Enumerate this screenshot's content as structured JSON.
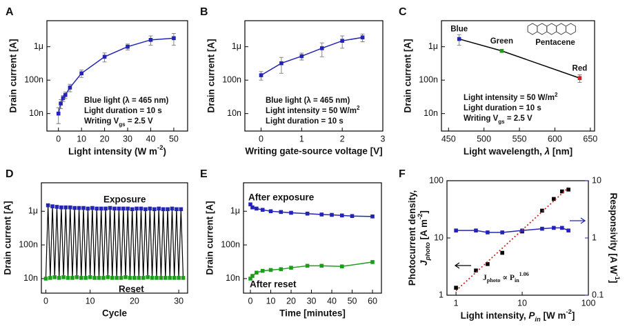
{
  "chart_data": [
    {
      "type": "line",
      "panel": "A",
      "xlabel": [
        {
          "text": "Light intensity (W m"
        },
        {
          "text": "-2",
          "sup": true
        },
        {
          "text": ")"
        }
      ],
      "ylabel": "Drain current [A]",
      "xlim": [
        -5,
        56
      ],
      "xticks": [
        0,
        10,
        20,
        30,
        40,
        50
      ],
      "ylim": [
        3e-09,
        6e-06
      ],
      "ylog": true,
      "yticks": [
        {
          "value": 1e-08,
          "label": "10n"
        },
        {
          "value": 1e-07,
          "label": "100n"
        },
        {
          "value": 1e-06,
          "label": "1μ"
        }
      ],
      "series": [
        {
          "color": "#2323b5",
          "x": [
            0,
            1,
            2,
            3,
            5,
            10,
            20,
            30,
            40,
            50
          ],
          "values": [
            1e-08,
            2e-08,
            2.9e-08,
            3.6e-08,
            6e-08,
            1.6e-07,
            5e-07,
            1e-06,
            1.6e-06,
            1.8e-06
          ],
          "errors": [
            5e-09,
            6e-09,
            6e-09,
            8e-09,
            1.5e-08,
            4e-08,
            1.5e-07,
            2e-07,
            5e-07,
            7e-07
          ]
        }
      ],
      "annotations": [
        "Blue light (λ = 465 nm)",
        "Light duration = 10 s",
        [
          {
            "text": "Writing V"
          },
          {
            "text": "gs",
            "sub": true
          },
          {
            "text": " = 2.5 V"
          }
        ]
      ]
    },
    {
      "type": "line",
      "panel": "B",
      "xlabel": "Writing gate-source voltage [V]",
      "ylabel": "Drain current [A]",
      "xlim": [
        -0.4,
        3
      ],
      "xticks": [
        0,
        1,
        2,
        3
      ],
      "ylim": [
        3e-09,
        6e-06
      ],
      "ylog": true,
      "yticks": [
        {
          "value": 1e-08,
          "label": "10n"
        },
        {
          "value": 1e-07,
          "label": "100n"
        },
        {
          "value": 1e-06,
          "label": "1μ"
        }
      ],
      "series": [
        {
          "color": "#2323b5",
          "x": [
            0,
            0.5,
            1,
            1.5,
            2,
            2.5
          ],
          "values": [
            1.4e-07,
            3.2e-07,
            5.2e-07,
            9e-07,
            1.5e-06,
            1.9e-06
          ],
          "errors": [
            4e-08,
            1.6e-07,
            1.2e-07,
            4e-07,
            6e-07,
            5e-07
          ]
        }
      ],
      "annotations": [
        "Blue light (λ = 465 nm)",
        [
          {
            "text": "Light intensity = 50 W/m"
          },
          {
            "text": "2",
            "sup": true
          }
        ],
        "Light duration = 10 s"
      ]
    },
    {
      "type": "line",
      "panel": "C",
      "xlabel": [
        {
          "text": "Light wavelength, "
        },
        {
          "text": "λ",
          "italic": true
        },
        {
          "text": " [nm]"
        }
      ],
      "ylabel": "Drain current [A]",
      "xlim": [
        440,
        656
      ],
      "xticks": [
        450,
        500,
        550,
        600,
        650
      ],
      "ylim": [
        3e-09,
        6e-06
      ],
      "ylog": true,
      "yticks": [
        {
          "value": 1e-08,
          "label": "10n"
        },
        {
          "value": 1e-07,
          "label": "100n"
        },
        {
          "value": 1e-06,
          "label": "1μ"
        }
      ],
      "line_color": "#000000",
      "series": [
        {
          "x": [
            465,
            525,
            635
          ],
          "values": [
            1.7e-06,
            7.5e-07,
            1.15e-07
          ],
          "errors": [
            6e-07,
            5e-08,
            3e-08
          ],
          "point_labels": [
            "Blue",
            "Green",
            "Red"
          ],
          "point_colors": [
            "#2323b5",
            "#1a9e1a",
            "#cc2222"
          ]
        }
      ],
      "molecule_label": "Pentacene",
      "annotations": [
        [
          {
            "text": "Light intensity = 50 W/m"
          },
          {
            "text": "2",
            "sup": true
          }
        ],
        "Light duration = 10 s",
        [
          {
            "text": "Writing V"
          },
          {
            "text": "gs",
            "sub": true
          },
          {
            "text": " = 2.5 V"
          }
        ]
      ]
    },
    {
      "type": "line",
      "panel": "D",
      "xlabel": "Cycle",
      "ylabel": "Drain current [A]",
      "xlim": [
        -1,
        32
      ],
      "xticks": [
        0,
        10,
        20,
        30
      ],
      "ylim": [
        3.7e-09,
        7e-06
      ],
      "ylog": true,
      "yticks": [
        {
          "value": 1e-08,
          "label": "10n"
        },
        {
          "value": 1e-07,
          "label": "100n"
        },
        {
          "value": 1e-06,
          "label": "1μ"
        }
      ],
      "zigzag": true,
      "trace_color": "#000000",
      "series": [
        {
          "name": "Exposure",
          "color": "#2323b5",
          "line": false,
          "x": [
            0.5,
            1.5,
            2.5,
            3.5,
            4.5,
            5.5,
            6.5,
            7.5,
            8.5,
            9.5,
            10.5,
            11.5,
            12.5,
            13.5,
            14.5,
            15.5,
            16.5,
            17.5,
            18.5,
            19.5,
            20.5,
            21.5,
            22.5,
            23.5,
            24.5,
            25.5,
            26.5,
            27.5,
            28.5,
            29.5,
            30.5
          ],
          "values": [
            1.5e-06,
            1.4e-06,
            1.35e-06,
            1.3e-06,
            1.3e-06,
            1.3e-06,
            1.25e-06,
            1.25e-06,
            1.25e-06,
            1.2e-06,
            1.25e-06,
            1.2e-06,
            1.2e-06,
            1.2e-06,
            1.25e-06,
            1.2e-06,
            1.2e-06,
            1.2e-06,
            1.2e-06,
            1.15e-06,
            1.2e-06,
            1.2e-06,
            1.15e-06,
            1.2e-06,
            1.15e-06,
            1.2e-06,
            1.15e-06,
            1.15e-06,
            1.2e-06,
            1.15e-06,
            1.15e-06
          ]
        },
        {
          "name": "Reset",
          "color": "#1a9e1a",
          "line": false,
          "x": [
            0,
            1,
            2,
            3,
            4,
            5,
            6,
            7,
            8,
            9,
            10,
            11,
            12,
            13,
            14,
            15,
            16,
            17,
            18,
            19,
            20,
            21,
            22,
            23,
            24,
            25,
            26,
            27,
            28,
            29,
            30,
            31
          ],
          "values": [
            1e-08,
            1.05e-08,
            1.1e-08,
            1.05e-08,
            1.1e-08,
            1.05e-08,
            1.05e-08,
            1.1e-08,
            1.05e-08,
            1.05e-08,
            1.1e-08,
            1.05e-08,
            1.05e-08,
            1.05e-08,
            1.1e-08,
            1.05e-08,
            1.05e-08,
            1.05e-08,
            1.1e-08,
            1.05e-08,
            1.05e-08,
            1.05e-08,
            1.05e-08,
            1.1e-08,
            1.05e-08,
            1.05e-08,
            1.05e-08,
            1.05e-08,
            1.05e-08,
            1.05e-08,
            1.05e-08,
            1.05e-08
          ]
        }
      ]
    },
    {
      "type": "line",
      "panel": "E",
      "xlabel": "Time [minutes]",
      "ylabel": "Drain current [A]",
      "xlim": [
        -3.4,
        64.4
      ],
      "xticks": [
        0,
        10,
        20,
        30,
        40,
        50,
        60
      ],
      "ylim": [
        3.7e-09,
        7e-06
      ],
      "ylog": true,
      "yticks": [
        {
          "value": 1e-08,
          "label": "10n"
        },
        {
          "value": 1e-07,
          "label": "100n"
        },
        {
          "value": 1e-06,
          "label": "1μ"
        }
      ],
      "series": [
        {
          "name": "After exposure",
          "color": "#2323b5",
          "x": [
            0,
            1,
            3,
            6,
            10,
            15,
            20,
            28,
            35,
            40,
            45,
            50,
            60
          ],
          "values": [
            1.6e-06,
            1.3e-06,
            1.2e-06,
            1.1e-06,
            1e-06,
            9.5e-07,
            9e-07,
            8.5e-07,
            8e-07,
            7.8e-07,
            7.5e-07,
            7.2e-07,
            7e-07
          ]
        },
        {
          "name": "After reset",
          "color": "#1a9e1a",
          "x": [
            0,
            1,
            3,
            6,
            10,
            15,
            20,
            28,
            35,
            45,
            60
          ],
          "values": [
            1e-08,
            1.2e-08,
            1.5e-08,
            1.7e-08,
            1.8e-08,
            1.9e-08,
            2.1e-08,
            2.4e-08,
            2.4e-08,
            2.3e-08,
            3.1e-08
          ]
        }
      ]
    },
    {
      "type": "line",
      "panel": "F",
      "xlabel": [
        {
          "text": "Light intensity, "
        },
        {
          "text": "P",
          "italic": true
        },
        {
          "text": "in",
          "sub": true,
          "italic": true
        },
        {
          "text": " [W m"
        },
        {
          "text": "-2",
          "sup": true
        },
        {
          "text": "]"
        }
      ],
      "ylabel": [
        [
          {
            "text": "Photocurrent density,"
          }
        ],
        [
          {
            "text": "J",
            "italic": true
          },
          {
            "text": "photo",
            "sub": true,
            "italic": true
          },
          {
            "text": " [A m"
          },
          {
            "text": "-2",
            "sup": true
          },
          {
            "text": "]"
          }
        ]
      ],
      "y2label": [
        {
          "text": "Responsivity [A W"
        },
        {
          "text": "-1",
          "sup": true
        },
        {
          "text": "]"
        }
      ],
      "y2color": "#2323b5",
      "xlog": true,
      "xlim": [
        0.73,
        100
      ],
      "xticks": [
        1,
        10,
        100
      ],
      "ylog": true,
      "ylim": [
        1,
        100
      ],
      "yticks": [
        1,
        10,
        100
      ],
      "y2lim": [
        0.1,
        10
      ],
      "y2ticks": [
        0.1,
        1,
        10
      ],
      "series": [
        {
          "color": "#000000",
          "line": false,
          "x": [
            1,
            2,
            3,
            5,
            10,
            20,
            30,
            40,
            50
          ],
          "values": [
            1.35,
            2.7,
            3.5,
            5.5,
            13,
            30,
            48,
            65,
            70
          ]
        },
        {
          "color": "#2323b5",
          "axis": "y2",
          "x": [
            1,
            2,
            3,
            5,
            10,
            20,
            30,
            40,
            50
          ],
          "values": [
            1.35,
            1.35,
            1.25,
            1.25,
            1.35,
            1.45,
            1.5,
            1.5,
            1.35
          ]
        },
        {
          "color": "#cc2222",
          "style": "dotted",
          "marker": false,
          "x": [
            1,
            50
          ],
          "values": [
            1.2,
            76
          ]
        }
      ],
      "fit_label": [
        {
          "text": "J"
        },
        {
          "text": "photo",
          "sub": true
        },
        {
          "text": " ∝ P"
        },
        {
          "text": "in",
          "sub": true
        },
        {
          "text": "1.06",
          "sup": true
        }
      ]
    }
  ]
}
